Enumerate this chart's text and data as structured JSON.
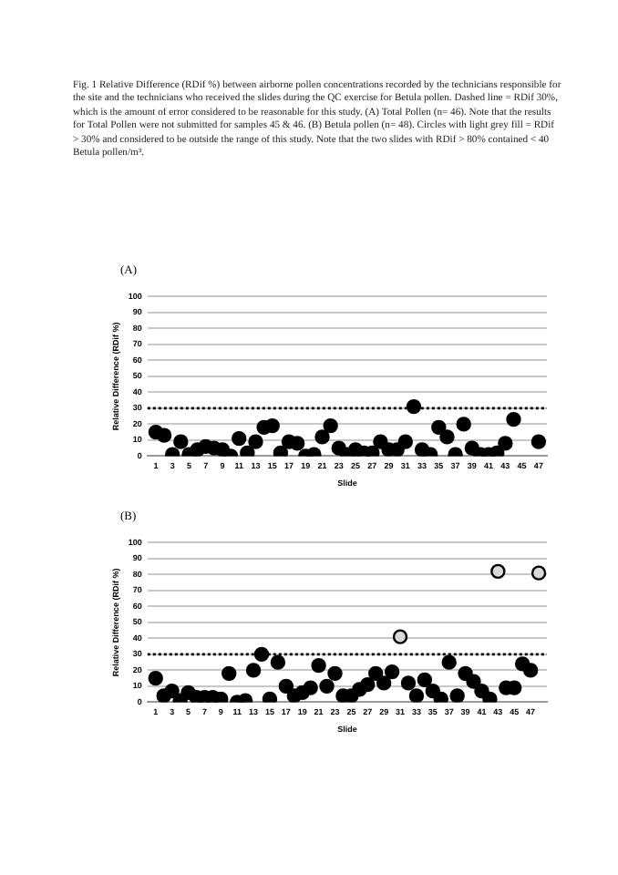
{
  "chart_data": [
    {
      "type": "scatter",
      "title": "(A)",
      "annotations": [
        "Fig. 1 Relative Difference (RDif %) between airborne pollen concentrations recorded by the technicians responsible for the site and the technicians who received the slides during the QC exercise for Betula pollen. Dashed line = RDif 30%, which is the amount of error considered to be reasonable for this study. (A) Total Pollen (n= 46). Note that the results for Total Pollen were not submitted for samples 45 & 46. (B) Betula pollen (n= 48). Circles with light grey fill = RDif > 30% and considered to be outside the range of this study. Note that the two slides with RDif > 80% contained < 40 Betula pollen/m³."
      ],
      "xlabel": "Slide",
      "ylabel": "Relative Difference (RDif %)",
      "x": [
        1,
        2,
        3,
        4,
        5,
        6,
        7,
        8,
        9,
        10,
        11,
        12,
        13,
        14,
        15,
        16,
        17,
        18,
        19,
        20,
        21,
        22,
        23,
        24,
        25,
        26,
        27,
        28,
        29,
        30,
        31,
        32,
        33,
        34,
        35,
        36,
        37,
        38,
        39,
        40,
        41,
        42,
        43,
        44,
        45,
        46,
        47
      ],
      "xlim": [
        0,
        48
      ],
      "xticks": [
        1,
        3,
        5,
        7,
        9,
        11,
        13,
        15,
        17,
        19,
        21,
        23,
        25,
        27,
        29,
        31,
        33,
        35,
        37,
        39,
        41,
        43,
        45,
        47
      ],
      "series": [
        {
          "color": "#000000",
          "values": [
            15,
            13,
            1,
            9,
            1,
            4,
            6,
            5,
            4,
            0,
            11,
            2,
            9,
            18,
            19,
            2,
            9,
            8,
            0,
            1,
            12,
            19,
            5,
            1,
            4,
            2,
            2,
            9,
            4,
            4,
            9,
            31,
            4,
            1,
            18,
            12,
            1,
            20,
            5,
            1,
            1,
            2,
            8,
            23,
            null,
            null,
            9
          ]
        }
      ],
      "ylim": [
        0,
        100
      ],
      "yticks": [
        0,
        10,
        20,
        30,
        40,
        50,
        60,
        70,
        80,
        90,
        100
      ],
      "grid": "y",
      "legend": false,
      "marker": "circle",
      "ref_lines": [
        {
          "axis": "y",
          "value": 30,
          "line_style": "dotted",
          "color": "#000000"
        }
      ]
    },
    {
      "type": "scatter",
      "title": "(B)",
      "xlabel": "Slide",
      "ylabel": "Relative Difference (RDif %)",
      "x": [
        1,
        2,
        3,
        4,
        5,
        6,
        7,
        8,
        9,
        10,
        11,
        12,
        13,
        14,
        15,
        16,
        17,
        18,
        19,
        20,
        21,
        22,
        23,
        24,
        25,
        26,
        27,
        28,
        29,
        30,
        31,
        32,
        33,
        34,
        35,
        36,
        37,
        38,
        39,
        40,
        41,
        42,
        43,
        44,
        45,
        46,
        47,
        48
      ],
      "xlim": [
        0,
        49
      ],
      "xticks": [
        1,
        3,
        5,
        7,
        9,
        11,
        13,
        15,
        17,
        19,
        21,
        23,
        25,
        27,
        29,
        31,
        33,
        35,
        37,
        39,
        41,
        43,
        45,
        47
      ],
      "series": [
        {
          "color": "#000000",
          "values": [
            15,
            4,
            7,
            1,
            6,
            3,
            3,
            3,
            2,
            18,
            0,
            1,
            20,
            30,
            2,
            25,
            10,
            4,
            6,
            9,
            23,
            10,
            18,
            4,
            4,
            8,
            11,
            18,
            12,
            19,
            41,
            12,
            4,
            14,
            7,
            2,
            25,
            4,
            18,
            13,
            7,
            2,
            82,
            9,
            9,
            24,
            20,
            81
          ],
          "colors": [
            "#000000",
            "#000000",
            "#000000",
            "#000000",
            "#000000",
            "#000000",
            "#000000",
            "#000000",
            "#000000",
            "#000000",
            "#000000",
            "#000000",
            "#000000",
            "#000000",
            "#000000",
            "#000000",
            "#000000",
            "#000000",
            "#000000",
            "#000000",
            "#000000",
            "#000000",
            "#000000",
            "#000000",
            "#000000",
            "#000000",
            "#000000",
            "#000000",
            "#000000",
            "#000000",
            "#d9d9d9",
            "#000000",
            "#000000",
            "#000000",
            "#000000",
            "#000000",
            "#000000",
            "#000000",
            "#000000",
            "#000000",
            "#000000",
            "#000000",
            "#d9d9d9",
            "#000000",
            "#000000",
            "#000000",
            "#000000",
            "#d9d9d9"
          ]
        }
      ],
      "ylim": [
        0,
        100
      ],
      "yticks": [
        0,
        10,
        20,
        30,
        40,
        50,
        60,
        70,
        80,
        90,
        100
      ],
      "grid": "y",
      "legend": false,
      "marker": "circle",
      "ref_lines": [
        {
          "axis": "y",
          "value": 30,
          "line_style": "dotted",
          "color": "#000000"
        }
      ]
    }
  ]
}
